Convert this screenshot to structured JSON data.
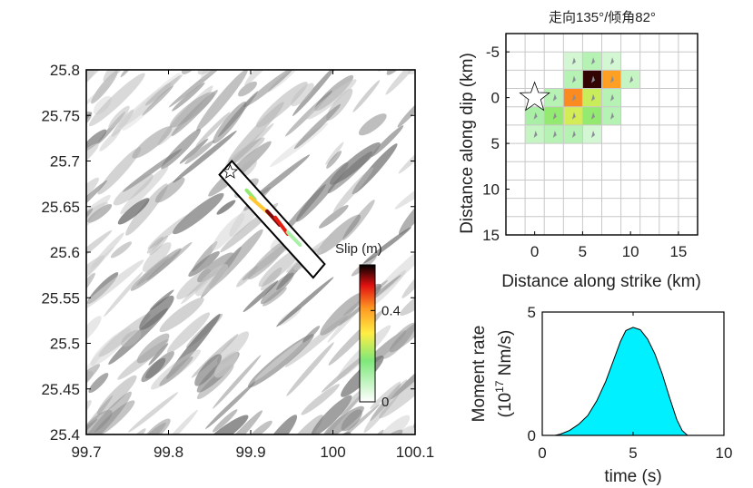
{
  "chart_data": [
    {
      "type": "map",
      "xlim": [
        99.7,
        100.1
      ],
      "ylim": [
        25.4,
        25.8
      ],
      "x_ticks": [
        "99.7",
        "99.8",
        "99.9",
        "100",
        "100.1"
      ],
      "y_ticks": [
        "25.4",
        "25.45",
        "25.5",
        "25.55",
        "25.6",
        "25.65",
        "25.7",
        "25.75",
        "25.8"
      ],
      "x_tick_values": [
        99.7,
        99.8,
        99.9,
        100.0,
        100.1
      ],
      "y_tick_values": [
        25.4,
        25.45,
        25.5,
        25.55,
        25.6,
        25.65,
        25.7,
        25.75,
        25.8
      ],
      "background": "shaded relief (grayscale)",
      "fault_box_corners": [
        [
          99.862,
          25.685
        ],
        [
          99.877,
          25.7
        ],
        [
          99.99,
          25.587
        ],
        [
          99.976,
          25.572
        ]
      ],
      "epicenter": {
        "lon": 99.875,
        "lat": 25.688,
        "marker": "star"
      },
      "slip_trace": [
        {
          "from": [
            99.895,
            25.668
          ],
          "to": [
            99.905,
            25.658
          ],
          "level": 0.2
        },
        {
          "from": [
            99.9,
            25.66
          ],
          "to": [
            99.925,
            25.64
          ],
          "level": 0.35
        },
        {
          "from": [
            99.92,
            25.645
          ],
          "to": [
            99.935,
            25.63
          ],
          "level": 0.55
        },
        {
          "from": [
            99.93,
            25.638
          ],
          "to": [
            99.945,
            25.62
          ],
          "level": 0.5
        },
        {
          "from": [
            99.945,
            25.622
          ],
          "to": [
            99.96,
            25.608
          ],
          "level": 0.12
        }
      ],
      "colorbar": {
        "title": "Slip (m)",
        "range": [
          0,
          0.6
        ],
        "ticks": [
          0,
          0.4
        ],
        "tick_labels": [
          "0",
          "0.4"
        ]
      }
    },
    {
      "type": "heatmap",
      "title": "走向135°/倾角82°",
      "xlabel": "Distance along strike (km)",
      "ylabel": "Distance along dip (km)",
      "xlim": [
        -3,
        17
      ],
      "ylim": [
        15,
        -7
      ],
      "grid_spacing_km": 2,
      "x_ticks": [
        "0",
        "5",
        "10",
        "15"
      ],
      "y_ticks": [
        "-5",
        "0",
        "5",
        "10",
        "15"
      ],
      "x_tick_values": [
        0,
        5,
        10,
        15
      ],
      "y_tick_values": [
        -5,
        0,
        5,
        10,
        15
      ],
      "hypocenter": {
        "x": 0,
        "y": 0,
        "marker": "star"
      },
      "cells": [
        {
          "x": 4,
          "y": -4,
          "slip": 0.06
        },
        {
          "x": 6,
          "y": -4,
          "slip": 0.1
        },
        {
          "x": 8,
          "y": -4,
          "slip": 0.06
        },
        {
          "x": 4,
          "y": -2,
          "slip": 0.1
        },
        {
          "x": 6,
          "y": -2,
          "slip": 0.58
        },
        {
          "x": 8,
          "y": -2,
          "slip": 0.4
        },
        {
          "x": 10,
          "y": -2,
          "slip": 0.08
        },
        {
          "x": 2,
          "y": 0,
          "slip": 0.1
        },
        {
          "x": 4,
          "y": 0,
          "slip": 0.42
        },
        {
          "x": 6,
          "y": 0,
          "slip": 0.25
        },
        {
          "x": 8,
          "y": 0,
          "slip": 0.1
        },
        {
          "x": 0,
          "y": 2,
          "slip": 0.12
        },
        {
          "x": 2,
          "y": 2,
          "slip": 0.2
        },
        {
          "x": 4,
          "y": 2,
          "slip": 0.26
        },
        {
          "x": 6,
          "y": 2,
          "slip": 0.2
        },
        {
          "x": 8,
          "y": 2,
          "slip": 0.1
        },
        {
          "x": 0,
          "y": 4,
          "slip": 0.08
        },
        {
          "x": 2,
          "y": 4,
          "slip": 0.1
        },
        {
          "x": 4,
          "y": 4,
          "slip": 0.1
        },
        {
          "x": 6,
          "y": 4,
          "slip": 0.06
        }
      ]
    },
    {
      "type": "area",
      "xlabel": "time (s)",
      "ylabel": "Moment rate",
      "ylabel_units": [
        "(10",
        "17",
        " Nm/s)"
      ],
      "xlim": [
        0,
        10
      ],
      "ylim": [
        0,
        5
      ],
      "x_ticks": [
        "0",
        "5",
        "10"
      ],
      "y_ticks": [
        "0",
        "5"
      ],
      "x_tick_values": [
        0,
        5,
        10
      ],
      "y_tick_values": [
        0,
        5
      ],
      "fill": "#00f0ff",
      "x": [
        0.7,
        1.0,
        1.5,
        2.0,
        2.5,
        3.0,
        3.5,
        4.0,
        4.3,
        4.6,
        5.0,
        5.4,
        5.8,
        6.2,
        6.6,
        7.0,
        7.4,
        7.7,
        8.0
      ],
      "y": [
        0.0,
        0.05,
        0.2,
        0.45,
        0.8,
        1.4,
        2.2,
        3.2,
        3.8,
        4.25,
        4.38,
        4.28,
        3.9,
        3.3,
        2.5,
        1.55,
        0.65,
        0.2,
        0.0
      ]
    }
  ]
}
